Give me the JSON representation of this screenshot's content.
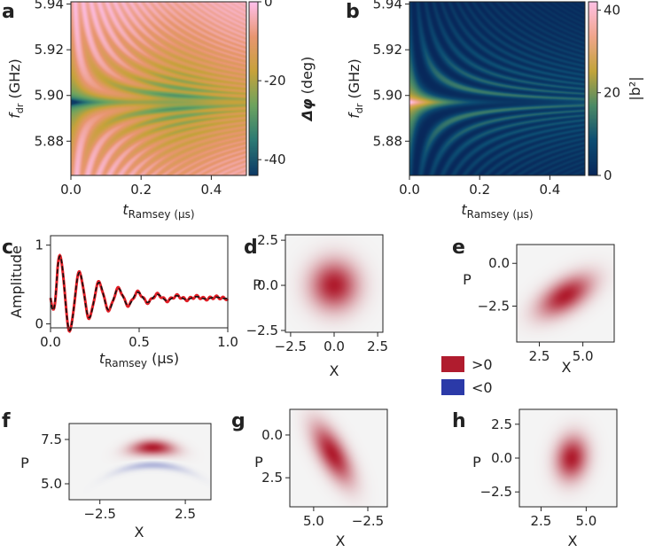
{
  "panel_labels": [
    "a",
    "b",
    "c",
    "d",
    "e",
    "f",
    "g",
    "h"
  ],
  "colors": {
    "map_a": [
      "#ffc0ec",
      "#e89670",
      "#c7a23b",
      "#6ca35f",
      "#2c7a74",
      "#0d3a66"
    ],
    "map_b": [
      "#08275a",
      "#0c4d73",
      "#4b8a66",
      "#c2a43a",
      "#f0a58b",
      "#ffc0e4"
    ],
    "wigner": [
      "#f4f4f4",
      "#b01c2e",
      "#2b3aa8"
    ],
    "trace_data": "#e21e26",
    "trace_fit": "#111111"
  },
  "legend": [
    {
      "label": ">0",
      "color": "#b01c2e"
    },
    {
      "label": "<0",
      "color": "#2b3aa8"
    }
  ],
  "chart_data": [
    {
      "id": "a",
      "type": "heatmap",
      "xlabel": "t_Ramsey (μs)",
      "ylabel": "f_dr (GHz)",
      "xticks": [
        "0.0",
        "0.2",
        "0.4"
      ],
      "yticks": [
        "5.88",
        "5.90",
        "5.92",
        "5.94"
      ],
      "xlim": [
        0.0,
        0.5
      ],
      "ylim": [
        5.865,
        5.941
      ],
      "colorbar": {
        "label": "Δφ (deg)",
        "ticks": [
          "0",
          "-20",
          "-40"
        ],
        "range": [
          -44,
          0
        ]
      },
      "center_freq": 5.897,
      "values_description_free": true
    },
    {
      "id": "b",
      "type": "heatmap",
      "xlabel": "t_Ramsey (μs)",
      "ylabel": "f_dr (GHz)",
      "xticks": [
        "0.0",
        "0.2",
        "0.4"
      ],
      "yticks": [
        "5.88",
        "5.90",
        "5.92",
        "5.94"
      ],
      "xlim": [
        0.0,
        0.5
      ],
      "ylim": [
        5.865,
        5.941
      ],
      "colorbar": {
        "label": "|b²|",
        "ticks": [
          "40",
          "20",
          "0"
        ],
        "range": [
          0,
          42
        ]
      },
      "center_freq": 5.897
    },
    {
      "id": "c",
      "type": "line",
      "xlabel": "t_Ramsey (μs)",
      "ylabel": "Amplitude",
      "xticks": [
        "0.0",
        "0.5",
        "1.0"
      ],
      "yticks": [
        "0",
        "1"
      ],
      "xlim": [
        0.0,
        1.0
      ],
      "ylim": [
        -0.05,
        1.12
      ],
      "model": {
        "offset": 0.33,
        "amplitude": 0.68,
        "frequency_per_us": 9.1,
        "decay_us": 0.22,
        "phase": 3.14159
      },
      "series": [
        {
          "name": "",
          "style": "data",
          "color": "#e21e26"
        },
        {
          "name": "",
          "style": "fit",
          "color": "#111111"
        }
      ]
    },
    {
      "id": "d",
      "type": "heatmap",
      "xlabel": "X",
      "ylabel": "P",
      "xticks": [
        "−2.5",
        "0.0",
        "2.5"
      ],
      "yticks": [
        "2.5",
        "0.0",
        "−2.5"
      ],
      "xlim": [
        -2.8,
        2.8
      ],
      "ylim": [
        -2.6,
        2.8
      ],
      "y_inverted": false,
      "blob": {
        "cx": 0.0,
        "cy": 0.0,
        "sx": 0.85,
        "sy": 0.85,
        "rho": 0.0,
        "peak": 1.0
      }
    },
    {
      "id": "e",
      "type": "heatmap",
      "xlabel": "X",
      "ylabel": "P",
      "xticks": [
        "2.5",
        "5.0"
      ],
      "yticks": [
        "0.0",
        "−2.5"
      ],
      "xlim": [
        1.2,
        6.8
      ],
      "ylim": [
        -4.6,
        1.1
      ],
      "y_inverted": false,
      "blob": {
        "cx": 4.0,
        "cy": -1.9,
        "sx": 0.95,
        "sy": 0.75,
        "rho": 0.55,
        "peak": 1.0
      }
    },
    {
      "id": "f",
      "type": "heatmap",
      "xlabel": "X",
      "ylabel": "P",
      "xticks": [
        "−2.5",
        "2.5"
      ],
      "yticks": [
        "7.5",
        "5.0"
      ],
      "xlim": [
        -4.3,
        4.0
      ],
      "ylim": [
        4.1,
        8.4
      ],
      "y_inverted": false,
      "arc": {
        "cx": 0.6,
        "r": 7.05,
        "center_y": 0.0,
        "theta_width": 0.16,
        "radial_width": 0.38,
        "tilt": 0.0
      },
      "negative_ring": {
        "r": 6.05,
        "theta_width": 0.3,
        "radial_width": 0.2,
        "amp": 0.25
      }
    },
    {
      "id": "g",
      "type": "heatmap",
      "xlabel": "X",
      "ylabel": "P",
      "xticks": [
        "5.0",
        "−2.5"
      ],
      "yticks": [
        "0.0",
        "2.5"
      ],
      "xlim": [
        8.3,
        -5.2
      ],
      "ylim": [
        4.2,
        -1.5
      ],
      "y_inverted": true,
      "blob": {
        "cx": 2.4,
        "cy": 1.1,
        "sx": 1.7,
        "sy": 1.05,
        "rho": -0.65,
        "peak": 1.0
      }
    },
    {
      "id": "h",
      "type": "heatmap",
      "xlabel": "X",
      "ylabel": "P",
      "xticks": [
        "2.5",
        "5.0"
      ],
      "yticks": [
        "2.5",
        "0.0",
        "−2.5"
      ],
      "xlim": [
        1.3,
        6.7
      ],
      "ylim": [
        -3.6,
        3.6
      ],
      "y_inverted": false,
      "blob": {
        "cx": 4.2,
        "cy": 0.0,
        "sx": 0.55,
        "sy": 1.0,
        "rho": 0.1,
        "peak": 1.0
      }
    }
  ]
}
